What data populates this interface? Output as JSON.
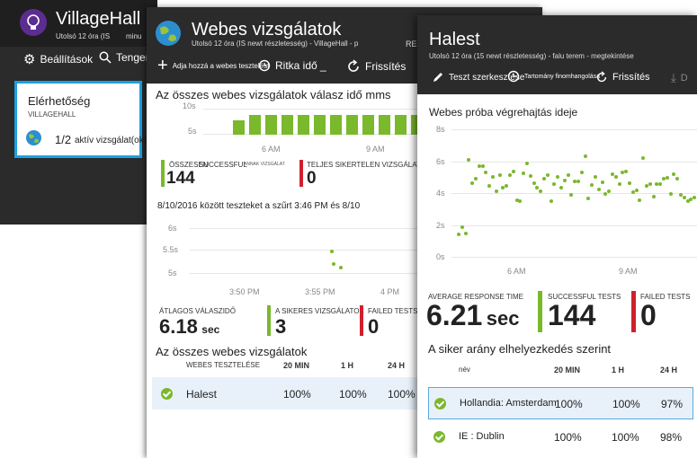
{
  "blade1": {
    "title": "VillageHall",
    "subtitle": "Utolsó 12 óra (IS",
    "subtitle_extra": "minu",
    "settings_label": "Beállítások",
    "search_label": "Tenger",
    "tile": {
      "title": "Elérhetőség",
      "subtitle": "VILLAGEHALL",
      "count": "1/2",
      "count_label": "aktív vizsgálat(ok)"
    }
  },
  "blade2": {
    "title": "Webes vizsgálatok",
    "subtitle": "Utolsó 12 óra (IS newt részletesség) - VillageHall - p",
    "subtitle_extra": "RE",
    "toolbar": {
      "add_label": "Adja hozzá a webes tesztelést",
      "ritka_label": "Ritka idő _",
      "refresh_label": "Frissítés"
    },
    "chart1": {
      "title": "Az összes webes vizsgálatok válasz idő mms",
      "y_ticks": [
        "10s",
        "5s"
      ],
      "x_ticks": [
        "6 AM",
        "9 AM"
      ]
    },
    "kpis": {
      "success_label_overlap": "ÖSSZESEN",
      "success_label": "SUCCESSFUL",
      "success_label_small": "ANNAK VIZSGÁLAT",
      "success_value": "144",
      "failed_label": "TELJES SIKERTELEN VIZSGÁLAT",
      "failed_value": "0"
    },
    "chart2": {
      "title": "8/10/2016 között teszteket a szűrt 3:46 PM és 8/10",
      "y_ticks": [
        "6s",
        "5.5s",
        "5s"
      ],
      "x_ticks": [
        "3:50 PM",
        "3:55 PM",
        "4 PM"
      ]
    },
    "kpis2": {
      "avg_label": "ÁTLAGOS VÁLASZIDŐ",
      "avg_value": "6.18",
      "avg_unit": "sec",
      "success_label": "A SIKERES VIZSGÁLATOK",
      "success_value": "3",
      "failed_label": "FAILED TESTS",
      "failed_value": "0"
    },
    "table": {
      "title": "Az összes webes vizsgálatok",
      "headers": [
        "WEBES TESZTELÉSE",
        "20 MIN",
        "1 H",
        "24 H"
      ],
      "rows": [
        {
          "name": "Halest",
          "c1": "100%",
          "c2": "100%",
          "c3": "100%"
        }
      ]
    }
  },
  "blade3": {
    "title": "Halest",
    "subtitle": "Utolsó 12 óra (15 newt részletesség) - falu terem - megtekintése",
    "toolbar": {
      "edit_label": "Teszt szerkesztése",
      "domain_label": "Tartomány finomhangolása",
      "refresh_label": "Frissítés",
      "download_label": "D"
    },
    "chart": {
      "title": "Webes próba végrehajtás ideje",
      "y_ticks": [
        "8s",
        "6s",
        "4s",
        "2s",
        "0s"
      ],
      "x_ticks": [
        "6 AM",
        "9 AM"
      ]
    },
    "kpis": {
      "avg_label": "AVERAGE RESPONSE TIME",
      "avg_value": "6.21",
      "avg_unit": "sec",
      "success_label": "SUCCESSFUL TESTS",
      "success_value": "144",
      "failed_label": "FAILED TESTS",
      "failed_value": "0"
    },
    "table": {
      "title": "A siker arány elhelyezkedés szerint",
      "headers": [
        "név",
        "20 MIN",
        "1 H",
        "24 H"
      ],
      "rows": [
        {
          "name": "Hollandia: Amsterdam",
          "c1": "100%",
          "c2": "100%",
          "c3": "97%"
        },
        {
          "name": "IE : Dublin",
          "c1": "100%",
          "c2": "100%",
          "c3": "98%"
        }
      ]
    }
  },
  "colors": {
    "green": "#7ab82c",
    "red": "#d1202c",
    "selected_border": "#1ba1e2",
    "header_dark": "#2b2b2b"
  }
}
